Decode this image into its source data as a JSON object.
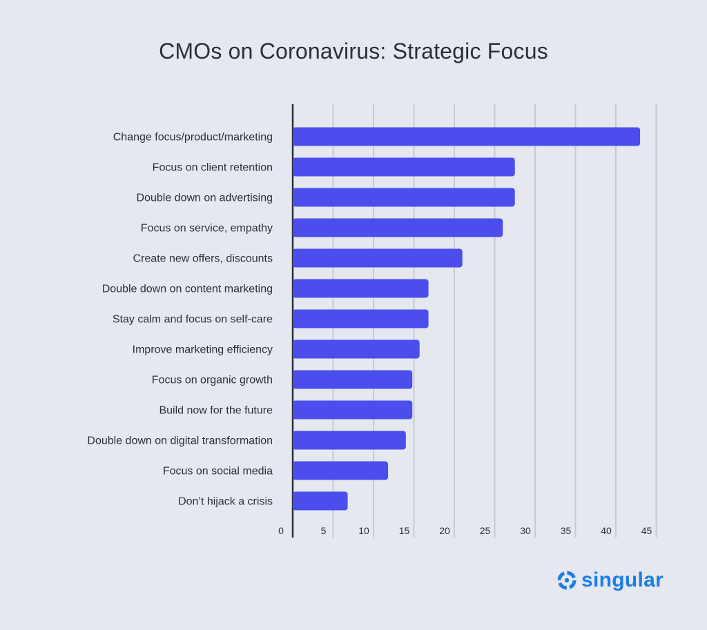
{
  "chart_data": {
    "type": "bar",
    "orientation": "horizontal",
    "title": "CMOs on Coronavirus: Strategic Focus",
    "categories": [
      "Change focus/product/marketing",
      "Focus on client retention",
      "Double down on advertising",
      "Focus on service, empathy",
      "Create new offers, discounts",
      "Double down on content marketing",
      "Stay calm and focus on self-care",
      "Improve marketing efficiency",
      "Focus on organic growth",
      "Build now for the future",
      "Double down on digital transformation",
      "Focus on social media",
      "Don’t hijack a crisis"
    ],
    "values": [
      43,
      27.5,
      27.5,
      26,
      21,
      16.8,
      16.8,
      15.7,
      14.8,
      14.8,
      14,
      11.8,
      6.8
    ],
    "x_ticks": [
      "0",
      "5",
      "10",
      "15",
      "20",
      "25",
      "30",
      "35",
      "40",
      "45"
    ],
    "xlim": [
      0,
      45
    ],
    "grid": "vertical",
    "bar_color": "#4b4ded"
  },
  "brand": {
    "name": "singular",
    "color": "#1a7ee8",
    "icon": "singular-logo-icon"
  }
}
